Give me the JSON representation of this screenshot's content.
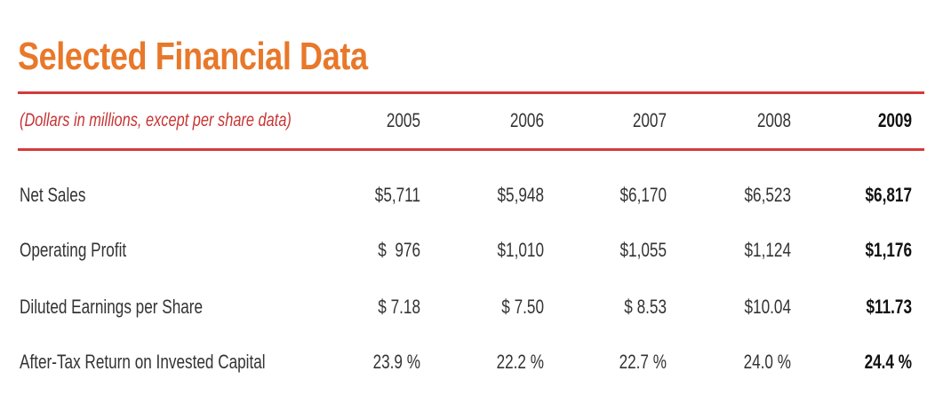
{
  "title": "Selected Financial Data",
  "colors": {
    "title": "#E8782A",
    "rules": "#D63A3A",
    "subtitle": "#C73434",
    "text": "#333333"
  },
  "table": {
    "caption": "(Dollars in millions, except per share data)",
    "columns": [
      "2005",
      "2006",
      "2007",
      "2008",
      "2009"
    ],
    "highlight_column": "2009",
    "rows": [
      {
        "label": "Net Sales",
        "values": [
          "$5,711",
          "$5,948",
          "$6,170",
          "$6,523",
          "$6,817"
        ]
      },
      {
        "label": "Operating Profit",
        "values": [
          "$  976",
          "$1,010",
          "$1,055",
          "$1,124",
          "$1,176"
        ]
      },
      {
        "label": "Diluted Earnings per Share",
        "values": [
          "$ 7.18",
          "$ 7.50",
          "$ 8.53",
          "$10.04",
          "$11.73"
        ]
      },
      {
        "label": "After-Tax Return on Invested Capital",
        "values": [
          "23.9 %",
          "22.2 %",
          "22.7 %",
          "24.0 %",
          "24.4 %"
        ]
      }
    ]
  }
}
